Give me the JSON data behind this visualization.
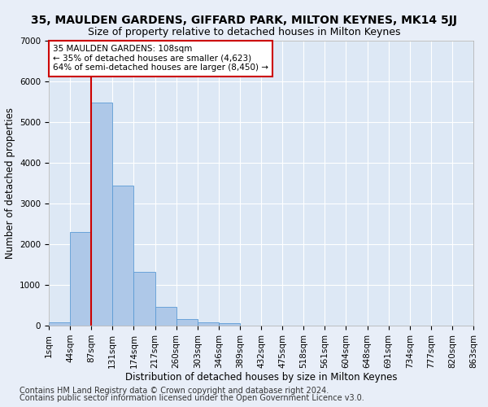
{
  "title": "35, MAULDEN GARDENS, GIFFARD PARK, MILTON KEYNES, MK14 5JJ",
  "subtitle": "Size of property relative to detached houses in Milton Keynes",
  "xlabel": "Distribution of detached houses by size in Milton Keynes",
  "ylabel": "Number of detached properties",
  "bar_values": [
    75,
    2300,
    5480,
    3450,
    1320,
    470,
    155,
    90,
    55,
    0,
    0,
    0,
    0,
    0,
    0,
    0,
    0,
    0,
    0,
    0
  ],
  "bin_labels": [
    "1sqm",
    "44sqm",
    "87sqm",
    "131sqm",
    "174sqm",
    "217sqm",
    "260sqm",
    "303sqm",
    "346sqm",
    "389sqm",
    "432sqm",
    "475sqm",
    "518sqm",
    "561sqm",
    "604sqm",
    "648sqm",
    "691sqm",
    "734sqm",
    "777sqm",
    "820sqm",
    "863sqm"
  ],
  "bar_color": "#aec8e8",
  "bar_edge_color": "#5b9bd5",
  "vline_x": 2,
  "vline_color": "#cc0000",
  "ylim": [
    0,
    7000
  ],
  "yticks": [
    0,
    1000,
    2000,
    3000,
    4000,
    5000,
    6000,
    7000
  ],
  "annotation_text": "35 MAULDEN GARDENS: 108sqm\n← 35% of detached houses are smaller (4,623)\n64% of semi-detached houses are larger (8,450) →",
  "annotation_box_color": "#ffffff",
  "annotation_box_edge": "#cc0000",
  "footnote1": "Contains HM Land Registry data © Crown copyright and database right 2024.",
  "footnote2": "Contains public sector information licensed under the Open Government Licence v3.0.",
  "background_color": "#dde8f5",
  "grid_color": "#ffffff",
  "title_fontsize": 10,
  "subtitle_fontsize": 9,
  "label_fontsize": 8.5,
  "tick_fontsize": 7.5,
  "footnote_fontsize": 7,
  "num_bins": 20
}
